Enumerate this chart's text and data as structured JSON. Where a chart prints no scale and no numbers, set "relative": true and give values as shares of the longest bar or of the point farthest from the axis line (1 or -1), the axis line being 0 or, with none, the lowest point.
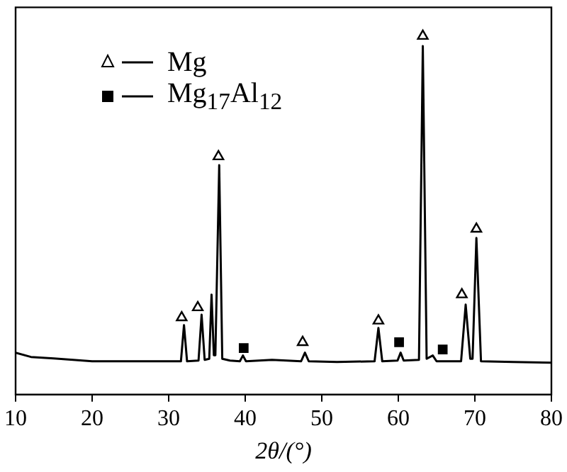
{
  "chart_data": {
    "type": "line",
    "xlabel": "2θ/(°)",
    "xlim": [
      10,
      80
    ],
    "xticks": [
      10,
      20,
      30,
      40,
      50,
      60,
      70,
      80
    ],
    "relative": true,
    "legend": "top left",
    "series": [
      {
        "color": "#000000",
        "marker": "none",
        "x": [
          10,
          12,
          15,
          20,
          25,
          30,
          31.6,
          32.0,
          32.4,
          33.9,
          34.3,
          34.7,
          35.3,
          35.6,
          35.9,
          36.1,
          36.6,
          37.0,
          38,
          39.3,
          39.7,
          40.1,
          43.5,
          47.3,
          47.8,
          48.3,
          52,
          56.9,
          57.4,
          57.9,
          59.9,
          60.3,
          60.7,
          62.7,
          63.2,
          63.7,
          64.5,
          65,
          68.2,
          68.8,
          69.4,
          69.7,
          70.2,
          70.8,
          75,
          80
        ],
        "values": [
          0.117,
          0.105,
          0.101,
          0.093,
          0.093,
          0.093,
          0.093,
          0.194,
          0.093,
          0.095,
          0.223,
          0.097,
          0.1,
          0.279,
          0.11,
          0.11,
          0.64,
          0.1,
          0.095,
          0.093,
          0.109,
          0.093,
          0.097,
          0.093,
          0.117,
          0.093,
          0.091,
          0.093,
          0.186,
          0.093,
          0.095,
          0.117,
          0.095,
          0.097,
          0.972,
          0.1,
          0.109,
          0.093,
          0.093,
          0.251,
          0.1,
          0.1,
          0.437,
          0.093,
          0.091,
          0.089
        ]
      },
      {
        "name": "Mg",
        "type": "scatter",
        "marker": "triangle",
        "color": "#000000",
        "x": [
          31.7,
          33.8,
          36.5,
          47.5,
          57.4,
          63.2,
          68.3,
          70.2
        ],
        "values": [
          0.215,
          0.243,
          0.664,
          0.146,
          0.206,
          1,
          0.279,
          0.462
        ]
      },
      {
        "name": "Mg$_{17}$Al$_{12}$",
        "type": "scatter",
        "marker": "square",
        "color": "#000000",
        "x": [
          39.8,
          60.1,
          65.8
        ],
        "values": [
          0.13,
          0.146,
          0.126
        ]
      }
    ]
  }
}
